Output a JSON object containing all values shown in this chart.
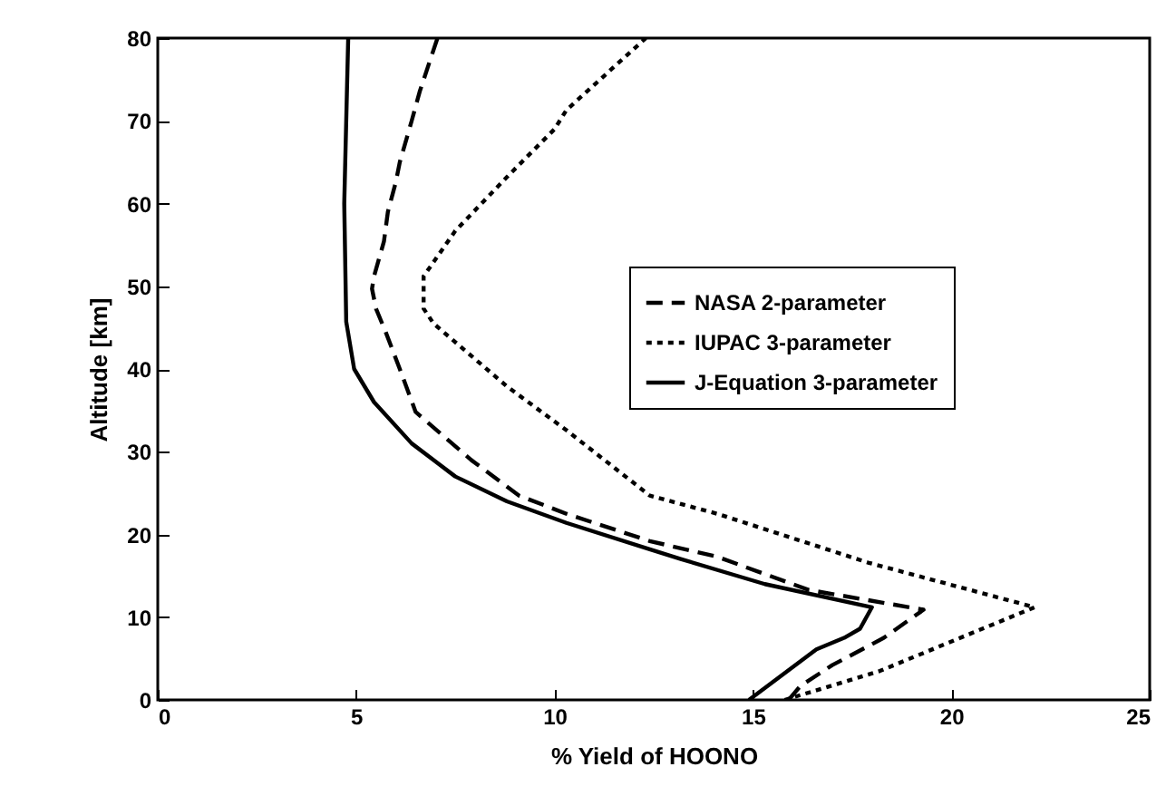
{
  "chart_data": {
    "type": "line",
    "xlabel": "% Yield of HOONO",
    "ylabel": "Altitude [km]",
    "xlim": [
      0,
      25
    ],
    "xticks": [
      0,
      5,
      10,
      15,
      20,
      25
    ],
    "ylim": [
      0,
      80
    ],
    "yticks": [
      0,
      10,
      20,
      30,
      40,
      50,
      60,
      70,
      80
    ],
    "legend": "right",
    "grid": false,
    "series": [
      {
        "name": "NASA 2-parameter",
        "color": "#000000",
        "line_style": "dashed",
        "x": [
          15.9,
          16.2,
          17.0,
          18.3,
          19.3,
          16.4,
          14.1,
          12.4,
          10.3,
          9.1,
          7.9,
          6.5,
          6.1,
          5.75,
          5.5,
          5.4,
          5.45,
          5.7,
          5.8,
          6.0,
          6.1,
          6.4,
          6.6,
          6.8,
          7.05
        ],
        "values": [
          0,
          1.7,
          4.2,
          7.5,
          10.9,
          13.3,
          17.3,
          19.2,
          22.5,
          24.7,
          29,
          34.8,
          40,
          44.4,
          47.3,
          49.7,
          51.2,
          55.4,
          59,
          62.6,
          65,
          70,
          73.5,
          76.4,
          80
        ]
      },
      {
        "name": "IUPAC 3-parameter",
        "color": "#000000",
        "line_style": "dotted",
        "x": [
          15.8,
          18.2,
          22.1,
          17.9,
          14.1,
          12.4,
          10.3,
          8.8,
          6.95,
          6.7,
          6.7,
          7.5,
          8.8,
          10.0,
          10.3,
          12.3
        ],
        "values": [
          0,
          3.5,
          11.2,
          16.6,
          22.5,
          24.7,
          32.6,
          37.9,
          45.5,
          47.3,
          51.2,
          56.7,
          63.2,
          69,
          71.3,
          80
        ]
      },
      {
        "name": "J-Equation 3-parameter",
        "color": "#000000",
        "line_style": "solid",
        "x": [
          14.9,
          16.6,
          17.3,
          17.7,
          18.0,
          15.3,
          13.2,
          12.4,
          10.3,
          8.8,
          7.5,
          6.4,
          5.45,
          4.95,
          4.75,
          4.7,
          4.8
        ],
        "values": [
          0,
          6.1,
          7.5,
          8.6,
          11.2,
          14,
          17,
          18.2,
          21.4,
          24,
          27,
          31,
          36,
          40,
          45.7,
          60,
          80
        ]
      }
    ]
  }
}
